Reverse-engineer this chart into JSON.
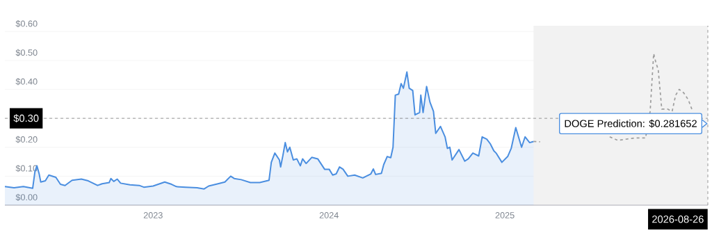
{
  "chart_data": {
    "type": "area",
    "xlim": [
      2022.157,
      2026.154
    ],
    "ylim": [
      0,
      0.62
    ],
    "xticks": [
      2023,
      2024,
      2025
    ],
    "yticks": [
      {
        "value": 0,
        "label": "$0.00"
      },
      {
        "value": 0.1,
        "label": "$0.10"
      },
      {
        "value": 0.2,
        "label": "$0.20"
      },
      {
        "value": 0.3,
        "label": null
      },
      {
        "value": 0.4,
        "label": "$0.40"
      },
      {
        "value": 0.5,
        "label": "$0.50"
      },
      {
        "value": 0.6,
        "label": "$0.60"
      }
    ],
    "grid": "y",
    "series": [
      {
        "color": "#4a8ee0",
        "line_style": "solid",
        "x": [
          2022.157,
          2022.209,
          2022.262,
          2022.315,
          2022.328,
          2022.339,
          2022.352,
          2022.361,
          2022.387,
          2022.407,
          2022.447,
          2022.473,
          2022.499,
          2022.539,
          2022.592,
          2022.631,
          2022.684,
          2022.71,
          2022.75,
          2022.76,
          2022.776,
          2022.796,
          2022.815,
          2022.868,
          2022.921,
          2022.947,
          2023.0,
          2023.066,
          2023.105,
          2023.132,
          2023.185,
          2023.25,
          2023.29,
          2023.316,
          2023.369,
          2023.408,
          2023.441,
          2023.461,
          2023.501,
          2023.553,
          2023.606,
          2023.659,
          2023.672,
          2023.692,
          2023.718,
          2023.725,
          2023.738,
          2023.751,
          2023.764,
          2023.777,
          2023.797,
          2023.817,
          2023.837,
          2023.85,
          2023.87,
          2023.902,
          2023.936,
          2023.975,
          2024.001,
          2024.021,
          2024.041,
          2024.06,
          2024.08,
          2024.107,
          2024.146,
          2024.192,
          2024.238,
          2024.252,
          2024.265,
          2024.298,
          2024.311,
          2024.331,
          2024.351,
          2024.364,
          2024.377,
          2024.396,
          2024.41,
          2024.423,
          2024.443,
          2024.456,
          2024.476,
          2024.489,
          2024.515,
          2024.522,
          2024.535,
          2024.555,
          2024.574,
          2024.594,
          2024.607,
          2024.634,
          2024.66,
          2024.673,
          2024.687,
          2024.7,
          2024.739,
          2024.772,
          2024.792,
          2024.818,
          2024.851,
          2024.871,
          2024.897,
          2024.917,
          2024.937,
          2024.95,
          2024.983,
          2025.016,
          2025.036,
          2025.062,
          2025.095,
          2025.115,
          2025.141,
          2025.163
        ],
        "values": [
          0.064,
          0.06,
          0.064,
          0.058,
          0.116,
          0.136,
          0.108,
          0.08,
          0.084,
          0.104,
          0.096,
          0.072,
          0.068,
          0.086,
          0.09,
          0.084,
          0.068,
          0.074,
          0.078,
          0.092,
          0.082,
          0.09,
          0.076,
          0.07,
          0.068,
          0.062,
          0.066,
          0.08,
          0.072,
          0.064,
          0.062,
          0.06,
          0.056,
          0.066,
          0.074,
          0.08,
          0.1,
          0.092,
          0.088,
          0.078,
          0.078,
          0.086,
          0.148,
          0.18,
          0.156,
          0.132,
          0.172,
          0.216,
          0.184,
          0.2,
          0.156,
          0.16,
          0.136,
          0.16,
          0.144,
          0.165,
          0.16,
          0.124,
          0.124,
          0.104,
          0.108,
          0.132,
          0.124,
          0.1,
          0.104,
          0.094,
          0.108,
          0.125,
          0.106,
          0.11,
          0.14,
          0.168,
          0.164,
          0.2,
          0.38,
          0.384,
          0.42,
          0.404,
          0.46,
          0.404,
          0.396,
          0.312,
          0.32,
          0.38,
          0.32,
          0.41,
          0.356,
          0.324,
          0.248,
          0.272,
          0.236,
          0.196,
          0.2,
          0.156,
          0.192,
          0.152,
          0.16,
          0.18,
          0.17,
          0.236,
          0.228,
          0.212,
          0.188,
          0.18,
          0.148,
          0.168,
          0.196,
          0.268,
          0.2,
          0.236,
          0.216,
          0.22
        ]
      },
      {
        "type": "line",
        "color": "#9e9e9e",
        "line_style": "dashed",
        "x": [
          2025.163,
          2025.2,
          2025.4,
          2025.596,
          2025.642,
          2025.74,
          2025.8,
          2025.826,
          2025.846,
          2025.859,
          2025.872,
          2025.892,
          2025.925,
          2025.951,
          2025.971,
          2025.991,
          2026.017,
          2026.043,
          2026.063
        ],
        "values": [
          0.22,
          0.219,
          null,
          0.236,
          0.224,
          0.232,
          0.232,
          0.324,
          0.524,
          0.492,
          0.468,
          0.332,
          0.332,
          0.324,
          0.38,
          0.4,
          0.388,
          0.364,
          0.332
        ]
      }
    ],
    "bands": [
      {
        "axis": "x",
        "from": 2025.163,
        "to": 2026.154,
        "color": "#f2f2f2"
      }
    ],
    "ref_lines": [
      {
        "axis": "y",
        "value": 0.3,
        "label": "$0.30",
        "color": "#666666",
        "line_style": "dashed"
      },
      {
        "axis": "x",
        "value": 2026.154,
        "label": "2026-08-26",
        "color": "#666666",
        "line_style": "dashed"
      }
    ],
    "annotations": [
      {
        "text": "DOGE Prediction: $0.281652",
        "x": 2026.154,
        "y": 0.281652
      }
    ]
  }
}
